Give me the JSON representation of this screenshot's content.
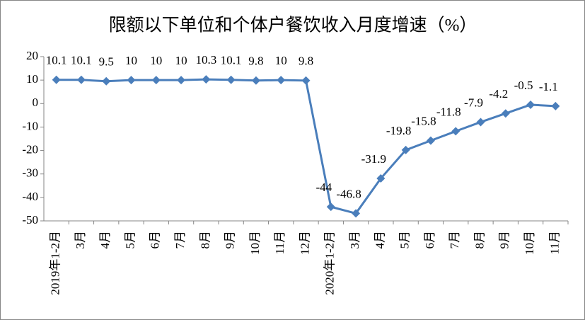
{
  "chart_data": {
    "type": "line",
    "title": "限额以下单位和个体户餐饮收入月度增速（%）",
    "categories": [
      "2019年1-2月",
      "3月",
      "4月",
      "5月",
      "6月",
      "7月",
      "8月",
      "9月",
      "10月",
      "11月",
      "12月",
      "2020年1-2月",
      "3月",
      "4月",
      "5月",
      "6月",
      "7月",
      "8月",
      "9月",
      "10月",
      "11月"
    ],
    "series": [
      {
        "name": "限额以下单位和个体户餐饮收入月度增速",
        "color": "#4a7ebb",
        "values": [
          10.1,
          10.1,
          9.5,
          10,
          10,
          10,
          10.3,
          10.1,
          9.8,
          10,
          9.8,
          -44,
          -46.8,
          -31.9,
          -19.8,
          -15.8,
          -11.8,
          -7.9,
          -4.2,
          -0.5,
          -1.1
        ]
      }
    ],
    "ylim": [
      -50,
      20
    ],
    "yticks": [
      -50,
      -40,
      -30,
      -20,
      -10,
      0,
      10,
      20
    ],
    "grid": false
  }
}
